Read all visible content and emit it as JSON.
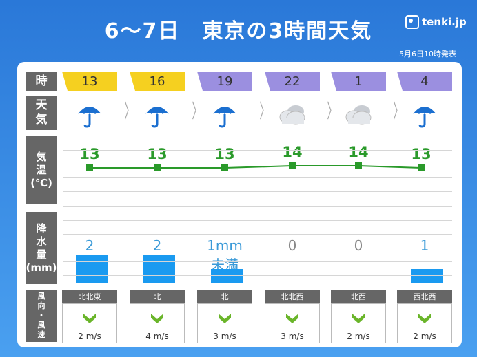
{
  "header": {
    "title": "6～7日　東京の3時間天気",
    "logo": "tenki.jp",
    "issued": "5月6日10時発表"
  },
  "labels": {
    "time": "時",
    "weather": "天\n気",
    "temp": "気\n温\n(℃)",
    "precip": "降\n水\n量\n(mm)",
    "wind": "風\n向\n・\n風\n速"
  },
  "hours": [
    "13",
    "16",
    "19",
    "22",
    "1",
    "4"
  ],
  "hour_colors": [
    "#f5d020",
    "#f5d020",
    "#9b8fe0",
    "#9b8fe0",
    "#9b8fe0",
    "#9b8fe0"
  ],
  "weather_icons": [
    "umbrella-icon",
    "umbrella-icon",
    "umbrella-icon",
    "cloud-icon",
    "cloud-icon",
    "umbrella-icon"
  ],
  "temps": [
    "13",
    "13",
    "13",
    "14",
    "14",
    "13"
  ],
  "precip": [
    "2",
    "2",
    "1mm未満",
    "0",
    "0",
    "1"
  ],
  "wind_dirs": [
    "北北東",
    "北",
    "北",
    "北北西",
    "北西",
    "西北西"
  ],
  "wind_speeds": [
    "2 m/s",
    "4 m/s",
    "3 m/s",
    "3 m/s",
    "2 m/s",
    "2 m/s"
  ]
}
